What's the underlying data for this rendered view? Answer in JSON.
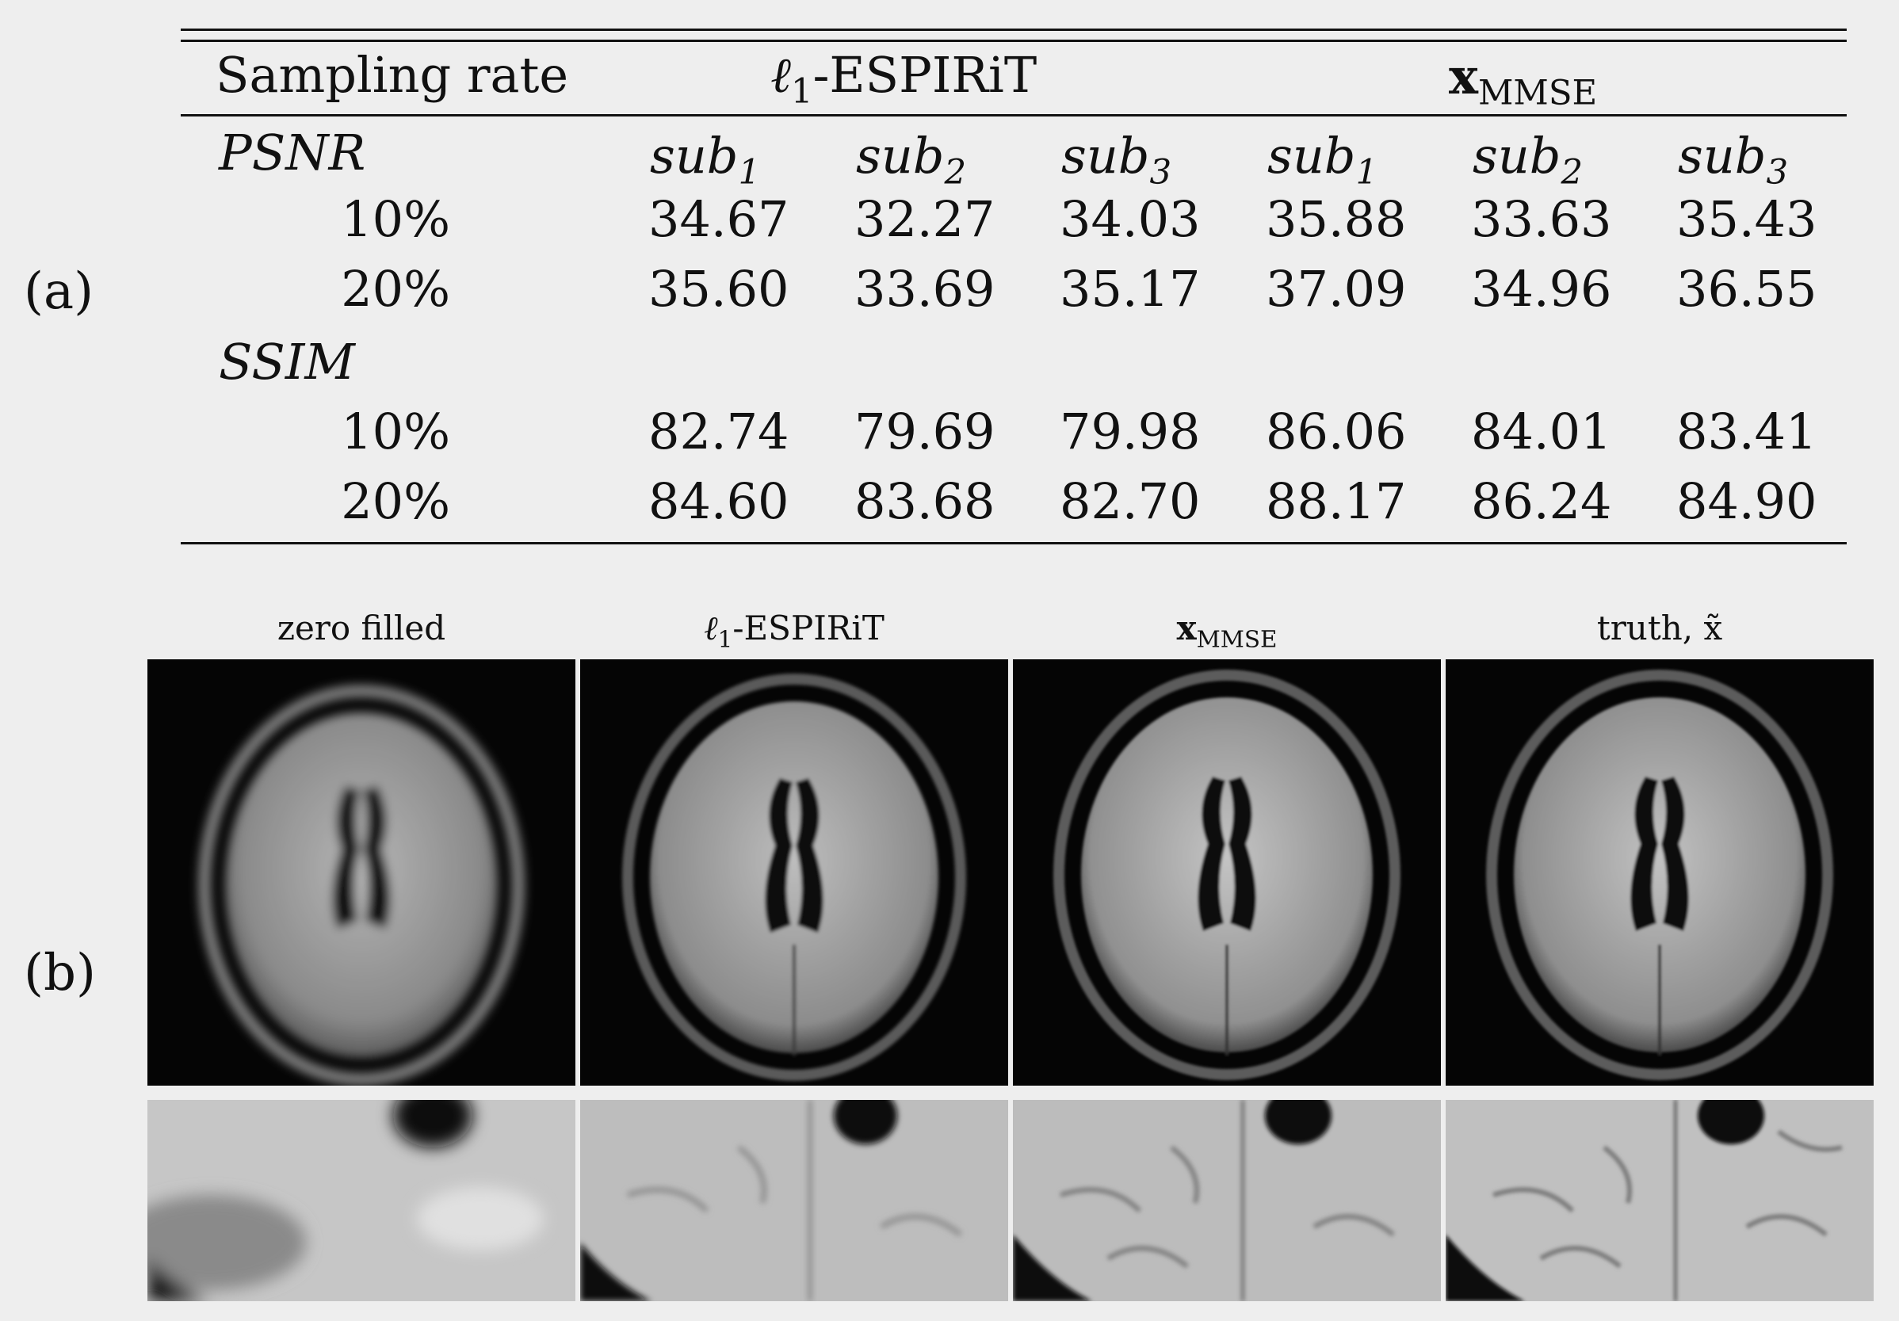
{
  "panel_labels": {
    "a": "(a)",
    "b": "(b)"
  },
  "table": {
    "header": {
      "sampling": "Sampling rate",
      "group1_prefix": "ℓ",
      "group1_sub": "1",
      "group1_suffix": "-ESPIRiT",
      "group2_main": "x",
      "group2_sub": "MMSE"
    },
    "sub_headers": [
      {
        "main": "sub",
        "idx": "1"
      },
      {
        "main": "sub",
        "idx": "2"
      },
      {
        "main": "sub",
        "idx": "3"
      },
      {
        "main": "sub",
        "idx": "1"
      },
      {
        "main": "sub",
        "idx": "2"
      },
      {
        "main": "sub",
        "idx": "3"
      }
    ],
    "sections": [
      {
        "metric": "PSNR",
        "rows": [
          {
            "rate": "10%",
            "values": [
              "34.67",
              "32.27",
              "34.03",
              "35.88",
              "33.63",
              "35.43"
            ]
          },
          {
            "rate": "20%",
            "values": [
              "35.60",
              "33.69",
              "35.17",
              "37.09",
              "34.96",
              "36.55"
            ]
          }
        ]
      },
      {
        "metric": "SSIM",
        "rows": [
          {
            "rate": "10%",
            "values": [
              "82.74",
              "79.69",
              "79.98",
              "86.06",
              "84.01",
              "83.41"
            ]
          },
          {
            "rate": "20%",
            "values": [
              "84.60",
              "83.68",
              "82.70",
              "88.17",
              "86.24",
              "84.90"
            ]
          }
        ]
      }
    ]
  },
  "figure": {
    "titles": [
      {
        "main": "zero filled",
        "sub": "",
        "suffix": ""
      },
      {
        "main": "ℓ",
        "sub": "1",
        "suffix": "-ESPIRiT"
      },
      {
        "main": "x",
        "sub": "MMSE",
        "suffix": ""
      },
      {
        "main": "truth, x̃",
        "sub": "",
        "suffix": ""
      }
    ]
  }
}
